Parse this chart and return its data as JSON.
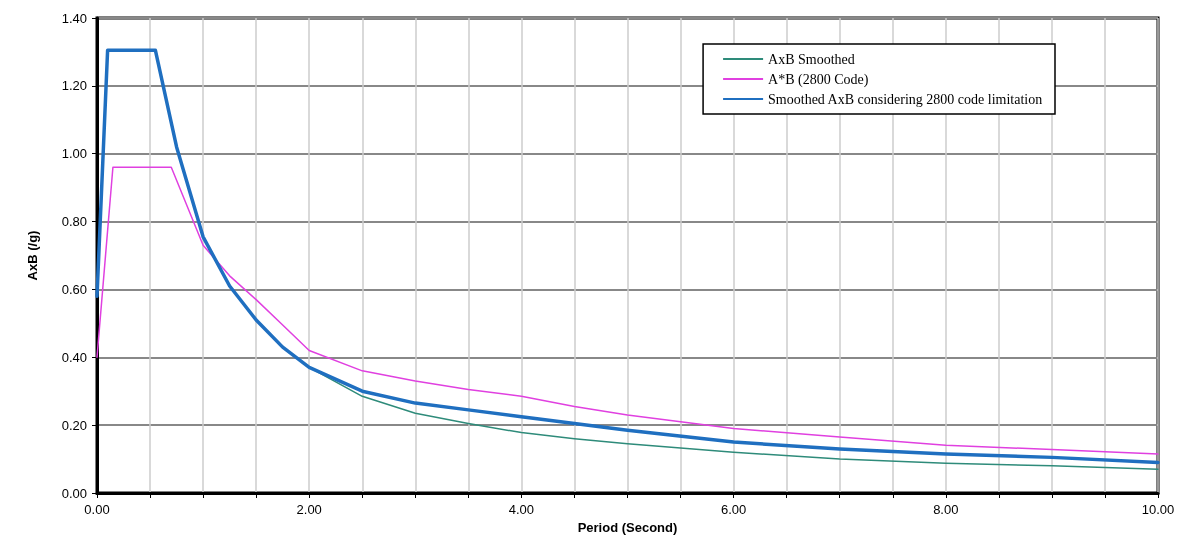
{
  "chart_data": {
    "type": "line",
    "xlabel": "Period (Second)",
    "ylabel": "AxB (/g)",
    "xlim": [
      0,
      10
    ],
    "xticks": [
      {
        "value": 0,
        "label": "0.00"
      },
      {
        "value": 0.5,
        "label": null
      },
      {
        "value": 1,
        "label": null
      },
      {
        "value": 1.5,
        "label": null
      },
      {
        "value": 2,
        "label": "2.00"
      },
      {
        "value": 2.5,
        "label": null
      },
      {
        "value": 3,
        "label": null
      },
      {
        "value": 3.5,
        "label": null
      },
      {
        "value": 4,
        "label": "4.00"
      },
      {
        "value": 4.5,
        "label": null
      },
      {
        "value": 5,
        "label": null
      },
      {
        "value": 5.5,
        "label": null
      },
      {
        "value": 6,
        "label": "6.00"
      },
      {
        "value": 6.5,
        "label": null
      },
      {
        "value": 7,
        "label": null
      },
      {
        "value": 7.5,
        "label": null
      },
      {
        "value": 8,
        "label": "8.00"
      },
      {
        "value": 8.5,
        "label": null
      },
      {
        "value": 9,
        "label": null
      },
      {
        "value": 9.5,
        "label": null
      },
      {
        "value": 10,
        "label": "10.00"
      }
    ],
    "ylim": [
      0,
      1.4
    ],
    "yticks": [
      {
        "value": 0,
        "label": "0.00"
      },
      {
        "value": 0.2,
        "label": "0.20"
      },
      {
        "value": 0.4,
        "label": "0.40"
      },
      {
        "value": 0.6,
        "label": "0.60"
      },
      {
        "value": 0.8,
        "label": "0.80"
      },
      {
        "value": 1,
        "label": "1.00"
      },
      {
        "value": 1.2,
        "label": "1.20"
      },
      {
        "value": 1.4,
        "label": "1.40"
      }
    ],
    "grid": true,
    "legend": "top right",
    "marker": "none",
    "line_style": "solid",
    "series": [
      {
        "name": "AxB Smoothed",
        "color": "#2e8b7a",
        "x": [
          2,
          2.5,
          3,
          3.5,
          4,
          4.5,
          5,
          6,
          7,
          8,
          9,
          10
        ],
        "values": [
          0.37,
          0.285,
          0.235,
          0.205,
          0.178,
          0.16,
          0.145,
          0.12,
          0.1,
          0.088,
          0.08,
          0.07
        ]
      },
      {
        "name": "A*B (2800 Code)",
        "color": "#e040e0",
        "x": [
          0,
          0.15,
          0.7,
          1,
          1.25,
          1.5,
          1.75,
          2,
          2.5,
          3,
          3.5,
          4,
          4.5,
          5,
          6,
          7,
          8,
          9,
          10
        ],
        "values": [
          0.4,
          0.96,
          0.96,
          0.73,
          0.64,
          0.57,
          0.495,
          0.42,
          0.36,
          0.33,
          0.305,
          0.285,
          0.255,
          0.23,
          0.19,
          0.165,
          0.141,
          0.128,
          0.115
        ]
      },
      {
        "name": "Smoothed AxB considering 2800 code limitation",
        "color": "#1f6fc0",
        "x": [
          0,
          0.1,
          0.55,
          0.75,
          1,
          1.25,
          1.5,
          1.75,
          2,
          2.5,
          3,
          3.5,
          4,
          4.5,
          5,
          6,
          7,
          8,
          9,
          10
        ],
        "values": [
          0.58,
          1.305,
          1.305,
          1.02,
          0.755,
          0.61,
          0.51,
          0.43,
          0.37,
          0.3,
          0.265,
          0.245,
          0.225,
          0.205,
          0.185,
          0.15,
          0.13,
          0.115,
          0.105,
          0.09
        ]
      }
    ]
  }
}
